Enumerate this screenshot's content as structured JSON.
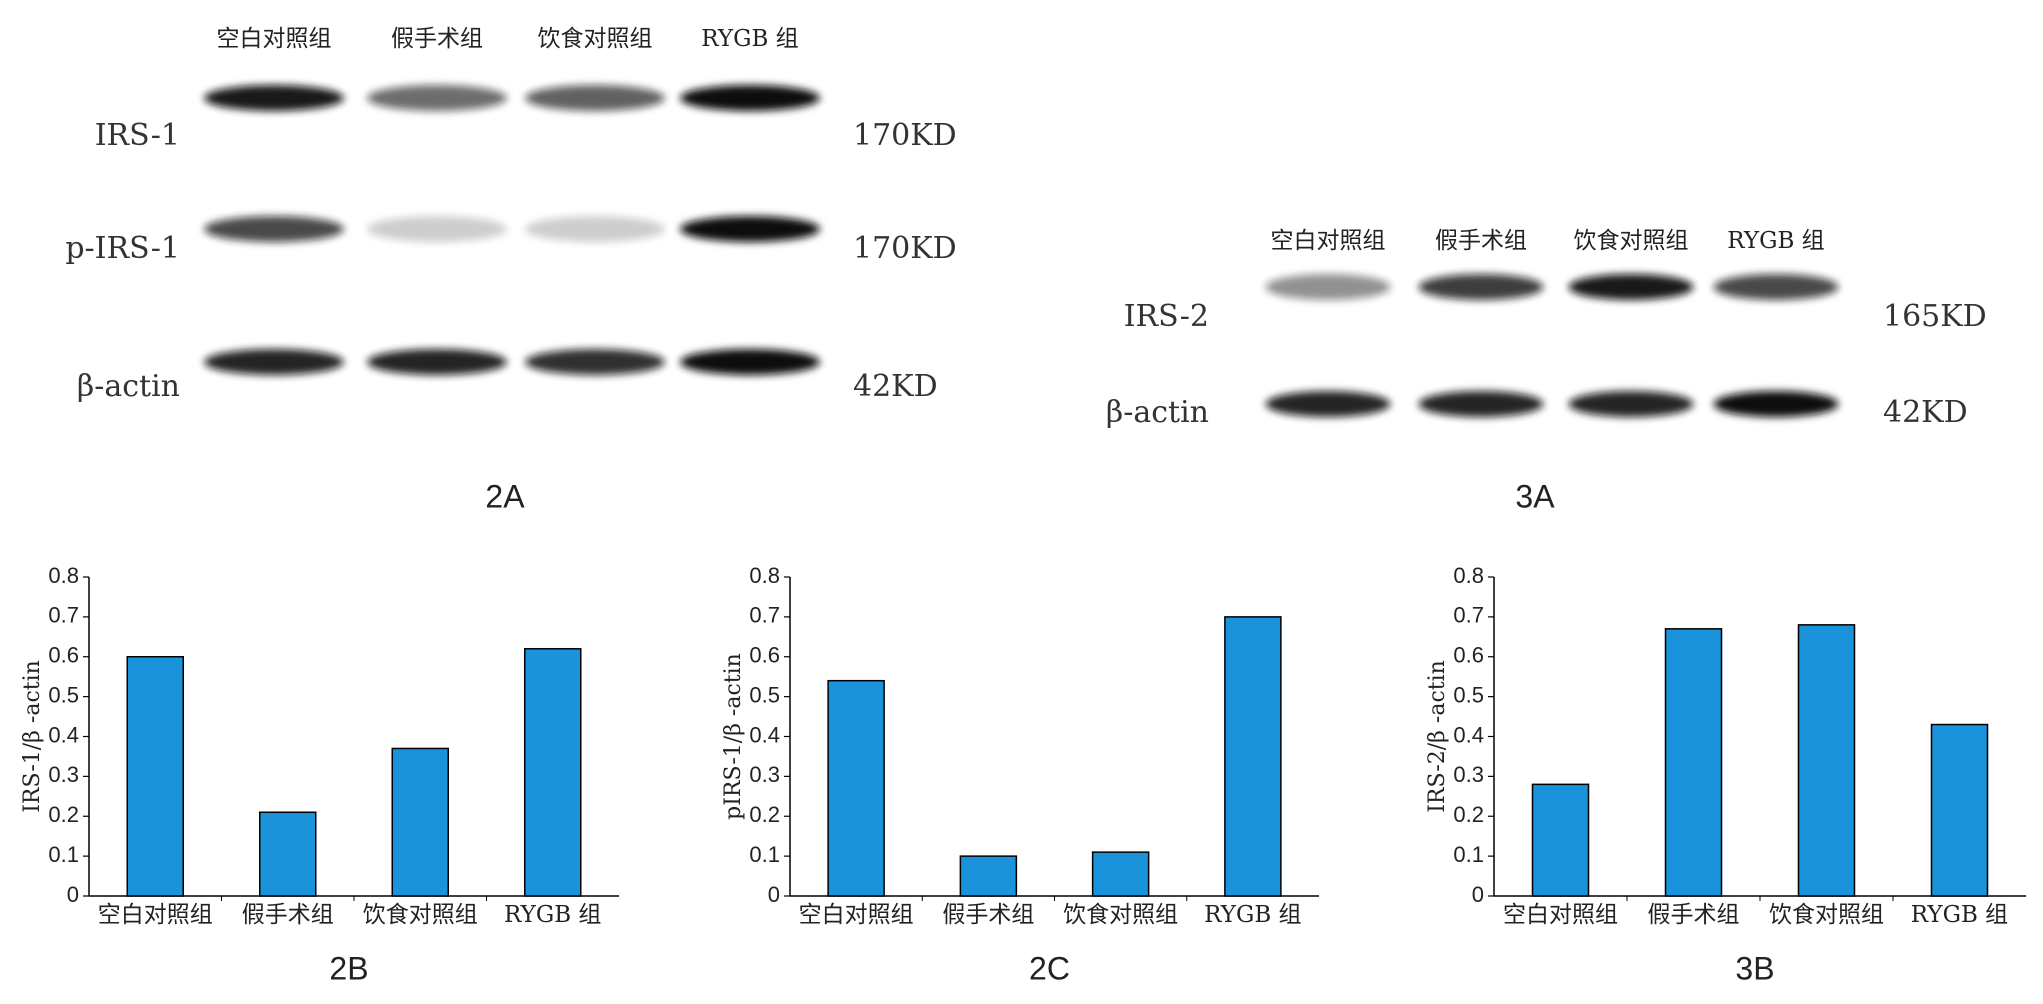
{
  "blots": [
    {
      "label": "2A",
      "lanes": [
        "空白对照组",
        "假手术组",
        "饮食对照组",
        "RYGB 组"
      ],
      "rows": [
        {
          "name": "IRS-1",
          "size": "170KD"
        },
        {
          "name": "p-IRS-1",
          "size": "170KD"
        },
        {
          "name": "β-actin",
          "size": "42KD"
        }
      ]
    },
    {
      "label": "3A",
      "lanes": [
        "空白对照组",
        "假手术组",
        "饮食对照组",
        "RYGB 组"
      ],
      "rows": [
        {
          "name": "IRS-2",
          "size": "165KD"
        },
        {
          "name": "β-actin",
          "size": "42KD"
        }
      ]
    }
  ],
  "chart_data": [
    {
      "type": "bar",
      "title": "2B",
      "y_label": "IRS-1/β -actin",
      "categories": [
        "空白对照组",
        "假手术组",
        "饮食对照组",
        "RYGB 组"
      ],
      "values": [
        0.6,
        0.21,
        0.37,
        0.62
      ],
      "color": "#1a93db",
      "ylim": [
        0,
        0.8
      ],
      "yticks": [
        0,
        0.1,
        0.2,
        0.3,
        0.4,
        0.5,
        0.6,
        0.7,
        0.8
      ]
    },
    {
      "type": "bar",
      "title": "2C",
      "y_label": "pIRS-1/β -actin",
      "categories": [
        "空白对照组",
        "假手术组",
        "饮食对照组",
        "RYGB 组"
      ],
      "values": [
        0.54,
        0.1,
        0.11,
        0.7
      ],
      "color": "#1a93db",
      "ylim": [
        0,
        0.8
      ],
      "yticks": [
        0,
        0.1,
        0.2,
        0.3,
        0.4,
        0.5,
        0.6,
        0.7,
        0.8
      ]
    },
    {
      "type": "bar",
      "title": "3B",
      "y_label": "IRS-2/β -actin",
      "categories": [
        "空白对照组",
        "假手术组",
        "饮食对照组",
        "RYGB 组"
      ],
      "values": [
        0.28,
        0.67,
        0.68,
        0.43
      ],
      "color": "#1a93db",
      "ylim": [
        0,
        0.8
      ],
      "yticks": [
        0,
        0.1,
        0.2,
        0.3,
        0.4,
        0.5,
        0.6,
        0.7,
        0.8
      ]
    }
  ]
}
